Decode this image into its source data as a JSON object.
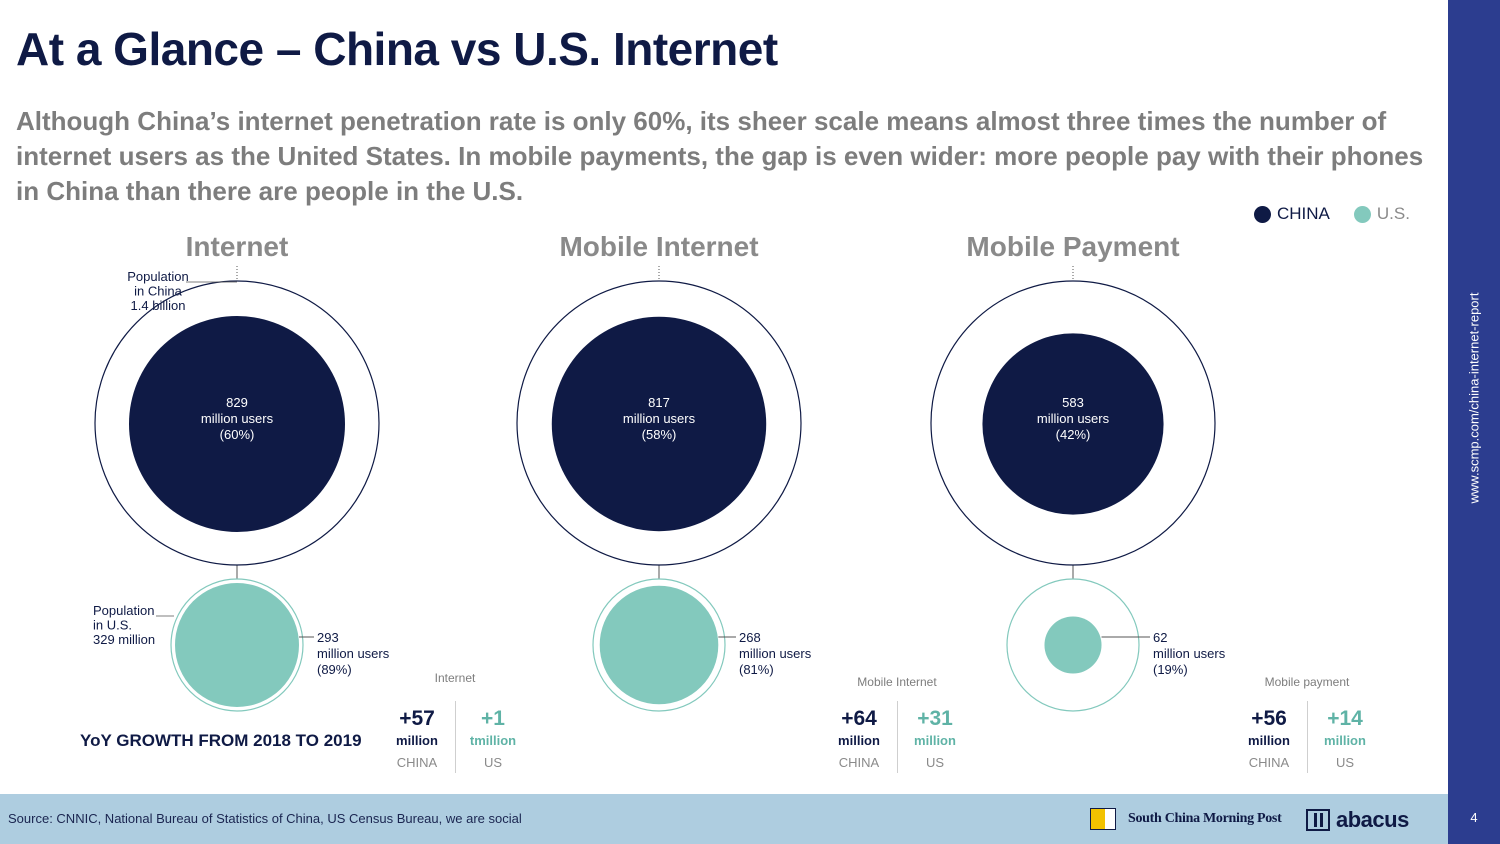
{
  "title": "At a Glance – China vs U.S. Internet",
  "subtitle": "Although China’s internet penetration rate is only 60%, its sheer scale means almost three times the number of internet users as the United States. In mobile payments, the gap is even wider: more people pay with their phones in China than there are people in the U.S.",
  "legend": {
    "china": "CHINA",
    "us": "U.S."
  },
  "colors": {
    "china": "#0f1a45",
    "us": "#83c9bd",
    "ring": "#0f1a45",
    "us_ring": "#83c9bd"
  },
  "annotations": {
    "china_population": [
      "Population",
      "in China",
      "1.4 billion"
    ],
    "us_population": [
      "Population",
      "in U.S.",
      "329 million"
    ]
  },
  "chart_data": [
    {
      "type": "bubble",
      "title": "Internet",
      "china": {
        "users_million": 829,
        "lines": [
          "829",
          "million users",
          "(60%)"
        ],
        "share": 60
      },
      "us": {
        "users_million": 293,
        "lines": [
          "293",
          "million users",
          "(89%)"
        ],
        "share": 89
      }
    },
    {
      "type": "bubble",
      "title": "Mobile Internet",
      "china": {
        "users_million": 817,
        "lines": [
          "817",
          "million users",
          "(58%)"
        ],
        "share": 58
      },
      "us": {
        "users_million": 268,
        "lines": [
          "268",
          "million users",
          "(81%)"
        ],
        "share": 81
      }
    },
    {
      "type": "bubble",
      "title": "Mobile Payment",
      "china": {
        "users_million": 583,
        "lines": [
          "583",
          "million users",
          "(42%)"
        ],
        "share": 42
      },
      "us": {
        "users_million": 62,
        "lines": [
          "62",
          "million users",
          "(19%)"
        ],
        "share": 19
      }
    }
  ],
  "growth": {
    "title": "YoY GROWTH FROM 2018 TO 2019",
    "blocks": [
      {
        "label": "Internet",
        "china_value": "+57",
        "china_unit": "million",
        "china_name": "CHINA",
        "us_value": "+1",
        "us_unit": "tmillion",
        "us_name": "US"
      },
      {
        "label": "Mobile Internet",
        "china_value": "+64",
        "china_unit": "million",
        "china_name": "CHINA",
        "us_value": "+31",
        "us_unit": "million",
        "us_name": "US"
      },
      {
        "label": "Mobile payment",
        "china_value": "+56",
        "china_unit": "million",
        "china_name": "CHINA",
        "us_value": "+14",
        "us_unit": "million",
        "us_name": "US"
      }
    ]
  },
  "footer": {
    "source": "Source: CNNIC, National Bureau of Statistics of China, US Census Bureau, we are social",
    "publisher": "South China Morning Post",
    "brand": "abacus"
  },
  "sidebar": {
    "url": "www.scmp.com/china-internet-report",
    "page": "4"
  }
}
